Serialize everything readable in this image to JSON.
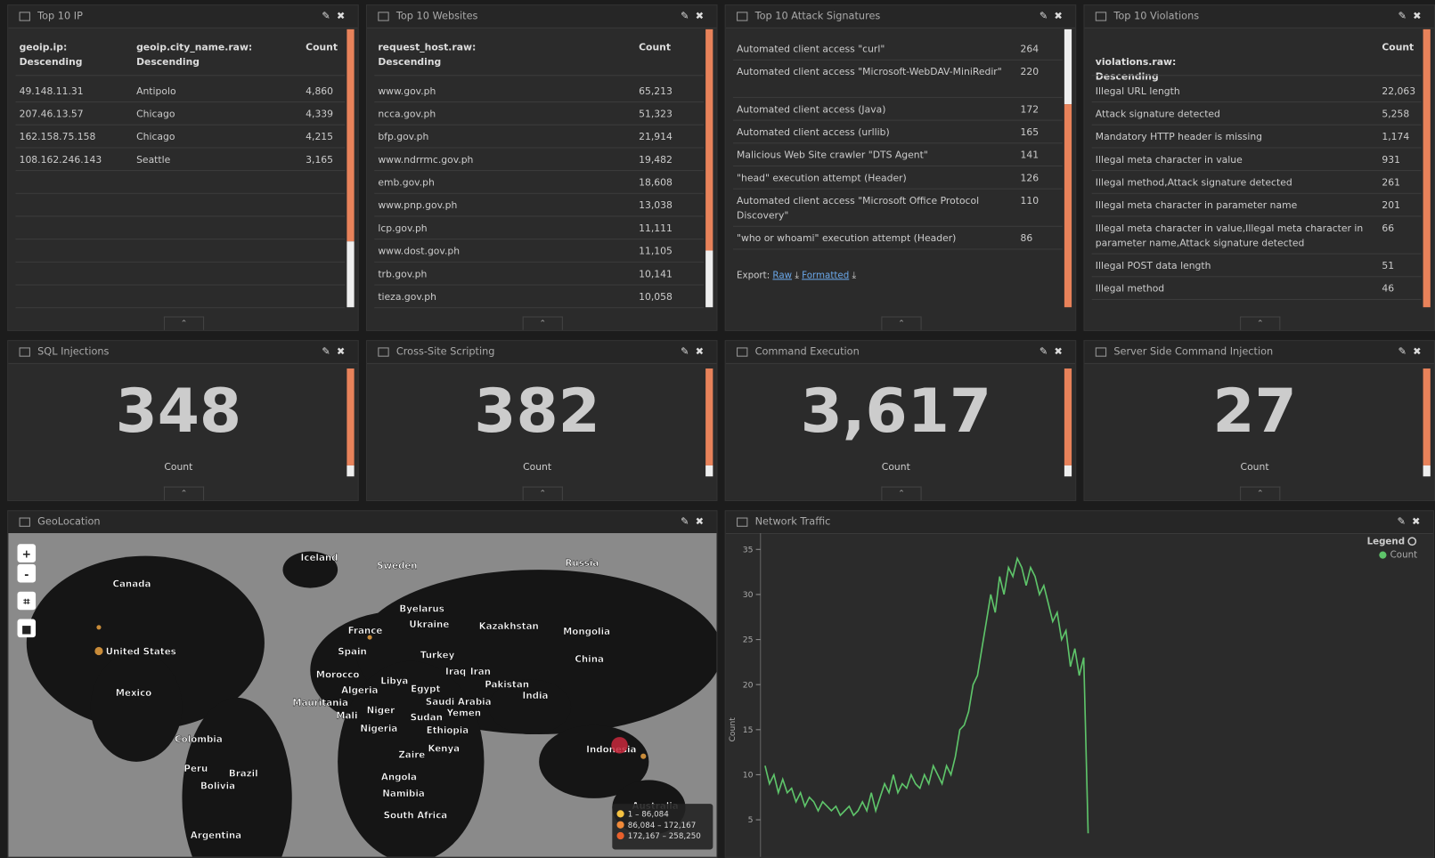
{
  "tables": [
    {
      "title": "Top 10 IP",
      "headers": [
        "geoip.ip: Descending",
        "geoip.city_name.raw: Descending",
        "Count"
      ],
      "rows": [
        [
          "49.148.11.31",
          "Antipolo",
          "4,860"
        ],
        [
          "207.46.13.57",
          "Chicago",
          "4,339"
        ],
        [
          "162.158.75.158",
          "Chicago",
          "4,215"
        ],
        [
          "108.162.246.143",
          "Seattle",
          "3,165"
        ]
      ]
    },
    {
      "title": "Top 10 Websites",
      "headers": [
        "request_host.raw: Descending",
        "Count"
      ],
      "rows": [
        [
          "www.gov.ph",
          "65,213"
        ],
        [
          "ncca.gov.ph",
          "51,323"
        ],
        [
          "bfp.gov.ph",
          "21,914"
        ],
        [
          "www.ndrrmc.gov.ph",
          "19,482"
        ],
        [
          "emb.gov.ph",
          "18,608"
        ],
        [
          "www.pnp.gov.ph",
          "13,038"
        ],
        [
          "lcp.gov.ph",
          "11,111"
        ],
        [
          "www.dost.gov.ph",
          "11,105"
        ],
        [
          "trb.gov.ph",
          "10,141"
        ],
        [
          "tieza.gov.ph",
          "10,058"
        ]
      ]
    },
    {
      "title": "Top 10 Attack Signatures",
      "headers": [],
      "rows": [
        [
          "Automated client access \"curl\"",
          "264"
        ],
        [
          "Automated client access \"Microsoft-WebDAV-MiniRedir\"",
          "220"
        ],
        [
          "Automated client access (Java)",
          "172"
        ],
        [
          "Automated client access (urllib)",
          "165"
        ],
        [
          "Malicious Web Site crawler \"DTS Agent\"",
          "141"
        ],
        [
          "\"head\" execution attempt (Header)",
          "126"
        ],
        [
          "Automated client access \"Microsoft Office Protocol Discovery\"",
          "110"
        ],
        [
          "\"who or whoami\" execution attempt (Header)",
          "86"
        ]
      ],
      "export": {
        "label": "Export:",
        "links": [
          "Raw",
          "Formatted"
        ]
      }
    },
    {
      "title": "Top 10 Violations",
      "headers": [
        "violations.raw: Descending",
        "Count"
      ],
      "rows": [
        [
          "Illegal URL length",
          "22,063"
        ],
        [
          "Attack signature detected",
          "5,258"
        ],
        [
          "Mandatory HTTP header is missing",
          "1,174"
        ],
        [
          "Illegal meta character in value",
          "931"
        ],
        [
          "Illegal method,Attack signature detected",
          "261"
        ],
        [
          "Illegal meta character in parameter name",
          "201"
        ],
        [
          "Illegal meta character in value,Illegal meta character in parameter name,Attack signature detected",
          "66"
        ],
        [
          "Illegal POST data length",
          "51"
        ],
        [
          "Illegal method",
          "46"
        ]
      ]
    }
  ],
  "metrics": [
    {
      "title": "SQL Injections",
      "value": "348",
      "label": "Count"
    },
    {
      "title": "Cross-Site Scripting",
      "value": "382",
      "label": "Count"
    },
    {
      "title": "Command Execution",
      "value": "3,617",
      "label": "Count"
    },
    {
      "title": "Server Side Command Injection",
      "value": "27",
      "label": "Count"
    }
  ],
  "geo": {
    "title": "GeoLocation",
    "labels": [
      "Iceland",
      "Sweden",
      "Russia",
      "Canada",
      "Byelarus",
      "Ukraine",
      "Kazakhstan",
      "Mongolia",
      "France",
      "United States",
      "Spain",
      "Turkey",
      "China",
      "Iraq",
      "Iran",
      "Morocco",
      "Libya",
      "Egypt",
      "Pakistan",
      "India",
      "Algeria",
      "Mexico",
      "Saudi Arabia",
      "Mauritania",
      "Niger",
      "Yemen",
      "Mali",
      "Sudan",
      "Nigeria",
      "Ethiopia",
      "Colombia",
      "Kenya",
      "Indonesia",
      "Zaire",
      "Peru",
      "Brazil",
      "Angola",
      "Bolivia",
      "Namibia",
      "Australia",
      "South Africa",
      "Argentina"
    ],
    "legend": [
      "1 – 86,084",
      "86,084 – 172,167",
      "172,167 – 258,250"
    ]
  },
  "traffic": {
    "title": "Network Traffic",
    "y_axis_label": "Count",
    "legend_title": "Legend",
    "series_name": "Count",
    "color": "#5ec46a",
    "values": [
      11,
      9,
      10,
      8,
      9.5,
      8,
      8.5,
      7,
      8,
      6.5,
      7.5,
      7,
      6,
      7,
      6.5,
      6,
      6.5,
      5.5,
      6,
      6.5,
      5.5,
      6,
      7,
      6,
      8,
      6,
      7.5,
      9,
      8,
      10,
      8,
      9,
      8.5,
      10,
      9,
      8.5,
      10,
      9,
      11,
      10,
      9,
      11,
      10,
      12,
      15,
      15.5,
      17,
      20,
      21,
      24,
      27,
      30,
      28,
      32,
      30,
      33,
      32,
      34,
      33,
      31,
      33,
      32,
      30,
      31,
      29,
      27,
      28,
      25,
      26,
      22,
      24,
      21,
      23,
      3.5
    ],
    "ylim": [
      1.5,
      36
    ],
    "yticks": [
      5,
      10,
      15,
      20,
      25,
      30,
      35
    ]
  }
}
